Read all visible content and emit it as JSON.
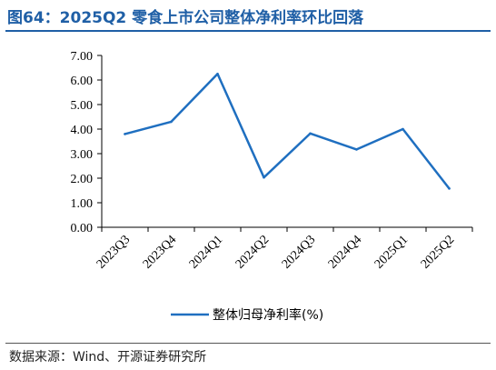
{
  "figure": {
    "title": "图64：2025Q2 零食上市公司整体净利率环比回落",
    "source": "数据来源：Wind、开源证券研究所"
  },
  "colors": {
    "title": "#1f5fa6",
    "series": "#1f6fc0",
    "axis": "#000000"
  },
  "chart_data": {
    "type": "line",
    "title": "",
    "xlabel": "",
    "ylabel": "",
    "categories": [
      "2023Q3",
      "2023Q4",
      "2024Q1",
      "2024Q2",
      "2024Q3",
      "2024Q4",
      "2025Q1",
      "2025Q2"
    ],
    "series": [
      {
        "name": "整体归母净利率(%)",
        "values": [
          3.8,
          4.3,
          6.25,
          2.03,
          3.82,
          3.17,
          4.0,
          1.58
        ]
      }
    ],
    "ylim": [
      0,
      7
    ],
    "yticks": [
      "0.00",
      "1.00",
      "2.00",
      "3.00",
      "4.00",
      "5.00",
      "6.00",
      "7.00"
    ],
    "grid": false,
    "legend_position": "bottom-center"
  }
}
